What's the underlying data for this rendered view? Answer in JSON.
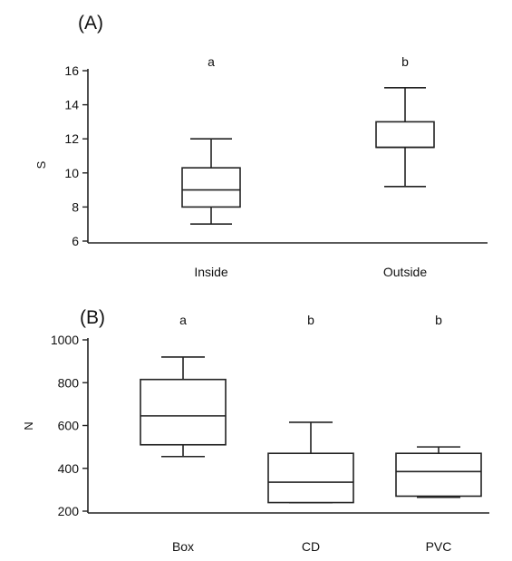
{
  "chart_data": [
    {
      "type": "box",
      "panel_label": "(A)",
      "ylabel": "S",
      "ylim": [
        6,
        16
      ],
      "yticks": [
        "6",
        "8",
        "10",
        "12",
        "14",
        "16"
      ],
      "categories": [
        "Inside",
        "Outside"
      ],
      "boxes": [
        {
          "min": 7,
          "q1": 8,
          "median": 9,
          "q3": 10.3,
          "max": 12
        },
        {
          "min": 9.2,
          "q1": 11.5,
          "median": 11.5,
          "q3": 13,
          "max": 15
        }
      ],
      "significance": [
        "a",
        "b"
      ]
    },
    {
      "type": "box",
      "panel_label": "(B)",
      "ylabel": "N",
      "ylim": [
        200,
        1000
      ],
      "yticks": [
        "200",
        "400",
        "600",
        "800",
        "1000"
      ],
      "categories": [
        "Box",
        "CD",
        "PVC"
      ],
      "boxes": [
        {
          "min": 455,
          "q1": 510,
          "median": 645,
          "q3": 815,
          "max": 920
        },
        {
          "min": 240,
          "q1": 240,
          "median": 335,
          "q3": 470,
          "max": 615
        },
        {
          "min": 265,
          "q1": 270,
          "median": 385,
          "q3": 470,
          "max": 500
        }
      ],
      "significance": [
        "a",
        "b",
        "b"
      ]
    }
  ]
}
